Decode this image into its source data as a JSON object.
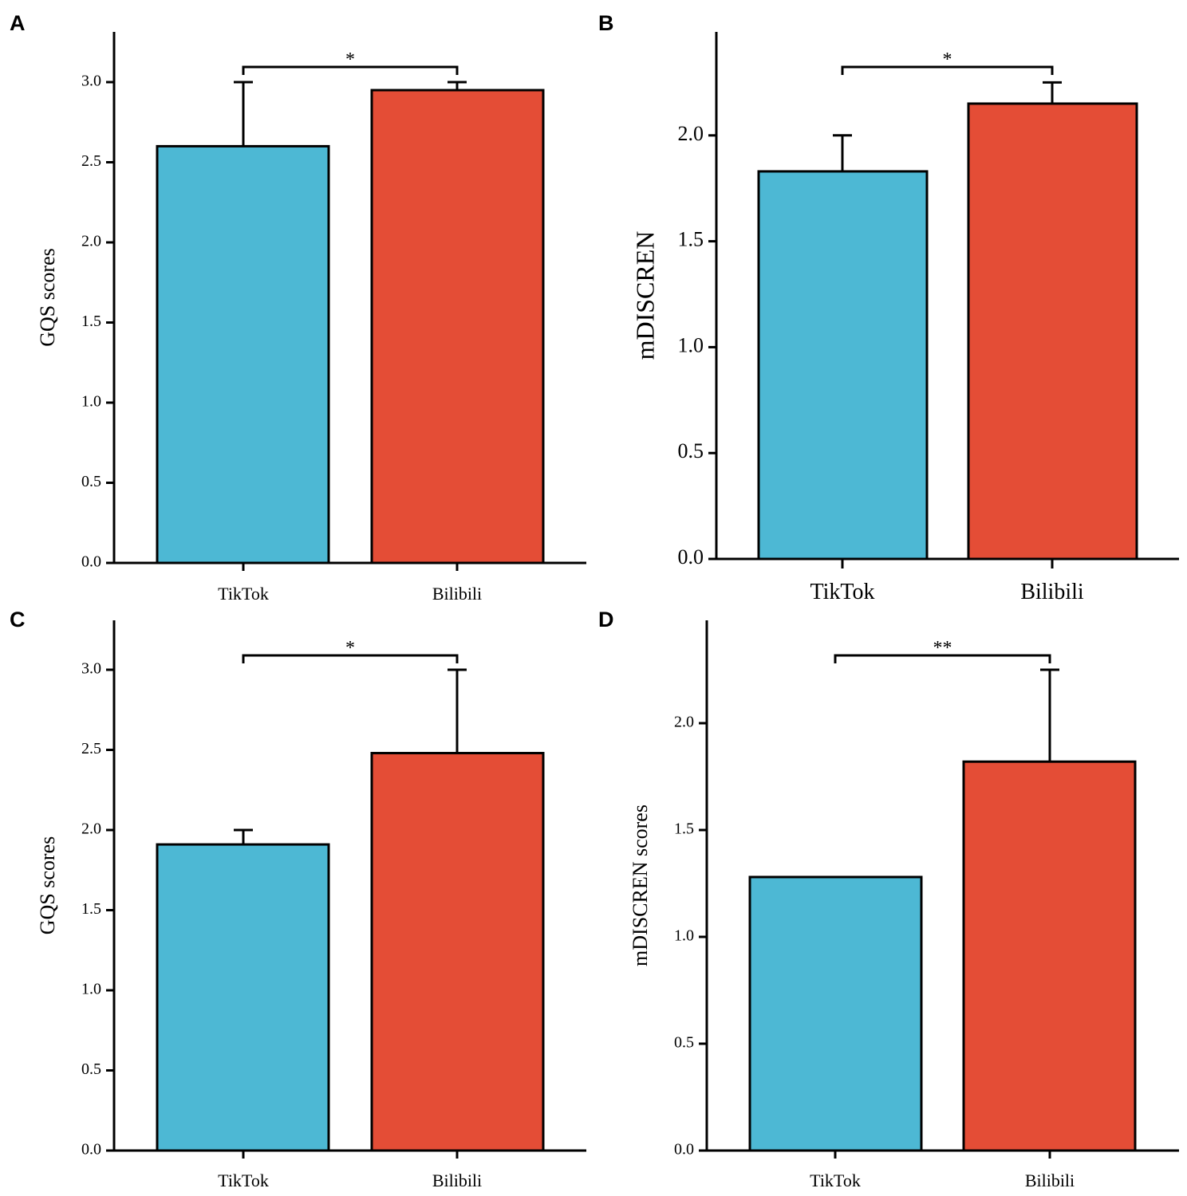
{
  "colors": {
    "tiktok": "#4db8d4",
    "bilibili": "#e44d36",
    "stroke": "#000000"
  },
  "chart_data": [
    {
      "panel": "A",
      "type": "bar",
      "categories": [
        "TikTok",
        "Bilibili"
      ],
      "values": [
        2.6,
        2.95
      ],
      "error_upper": [
        3.0,
        3.0
      ],
      "ylabel": "GQS scores",
      "xlabel": "",
      "ylim": [
        0,
        3.3
      ],
      "yticks": [
        "0.0",
        "0.5",
        "1.0",
        "1.5",
        "2.0",
        "2.5",
        "3.0"
      ],
      "significance": "*"
    },
    {
      "panel": "B",
      "type": "bar",
      "categories": [
        "TikTok",
        "Bilibili"
      ],
      "values": [
        1.83,
        2.15
      ],
      "error_upper": [
        2.0,
        2.25
      ],
      "ylabel": "mDISCREN",
      "xlabel": "",
      "ylim": [
        0,
        2.47
      ],
      "yticks": [
        "0.0",
        "0.5",
        "1.0",
        "1.5",
        "2.0"
      ],
      "significance": "*"
    },
    {
      "panel": "C",
      "type": "bar",
      "categories": [
        "TikTok",
        "Bilibili"
      ],
      "values": [
        1.91,
        2.48
      ],
      "error_upper": [
        2.0,
        3.0
      ],
      "ylabel": "GQS scores",
      "xlabel": "",
      "ylim": [
        0,
        3.3
      ],
      "yticks": [
        "0.0",
        "0.5",
        "1.0",
        "1.5",
        "2.0",
        "2.5",
        "3.0"
      ],
      "significance": "*"
    },
    {
      "panel": "D",
      "type": "bar",
      "categories": [
        "TikTok",
        "Bilibili"
      ],
      "values": [
        1.28,
        1.82
      ],
      "error_upper": [
        null,
        2.25
      ],
      "ylabel": "mDISCREN scores",
      "xlabel": "",
      "ylim": [
        0,
        2.47
      ],
      "yticks": [
        "0.0",
        "0.5",
        "1.0",
        "1.5",
        "2.0"
      ],
      "significance": "**"
    }
  ]
}
